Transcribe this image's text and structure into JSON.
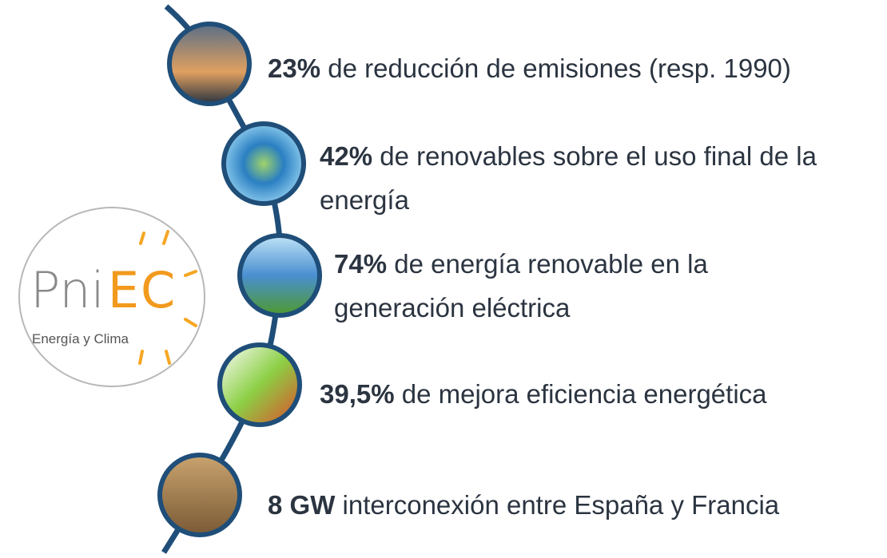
{
  "logo": {
    "letters": "Pni",
    "accent": "EC",
    "tagline": "Energía y Clima"
  },
  "items": [
    {
      "highlight": "23%",
      "text": "de reducción de emisiones (resp. 1990)"
    },
    {
      "highlight": "42%",
      "text": "de renovables sobre el uso final de la energía"
    },
    {
      "highlight": "74%",
      "text": "de energía renovable en la generación eléctrica"
    },
    {
      "highlight": "39,5%",
      "text": "de mejora eficiencia energética"
    },
    {
      "highlight": "8 GW",
      "text": "interconexión entre España y Francia"
    }
  ]
}
